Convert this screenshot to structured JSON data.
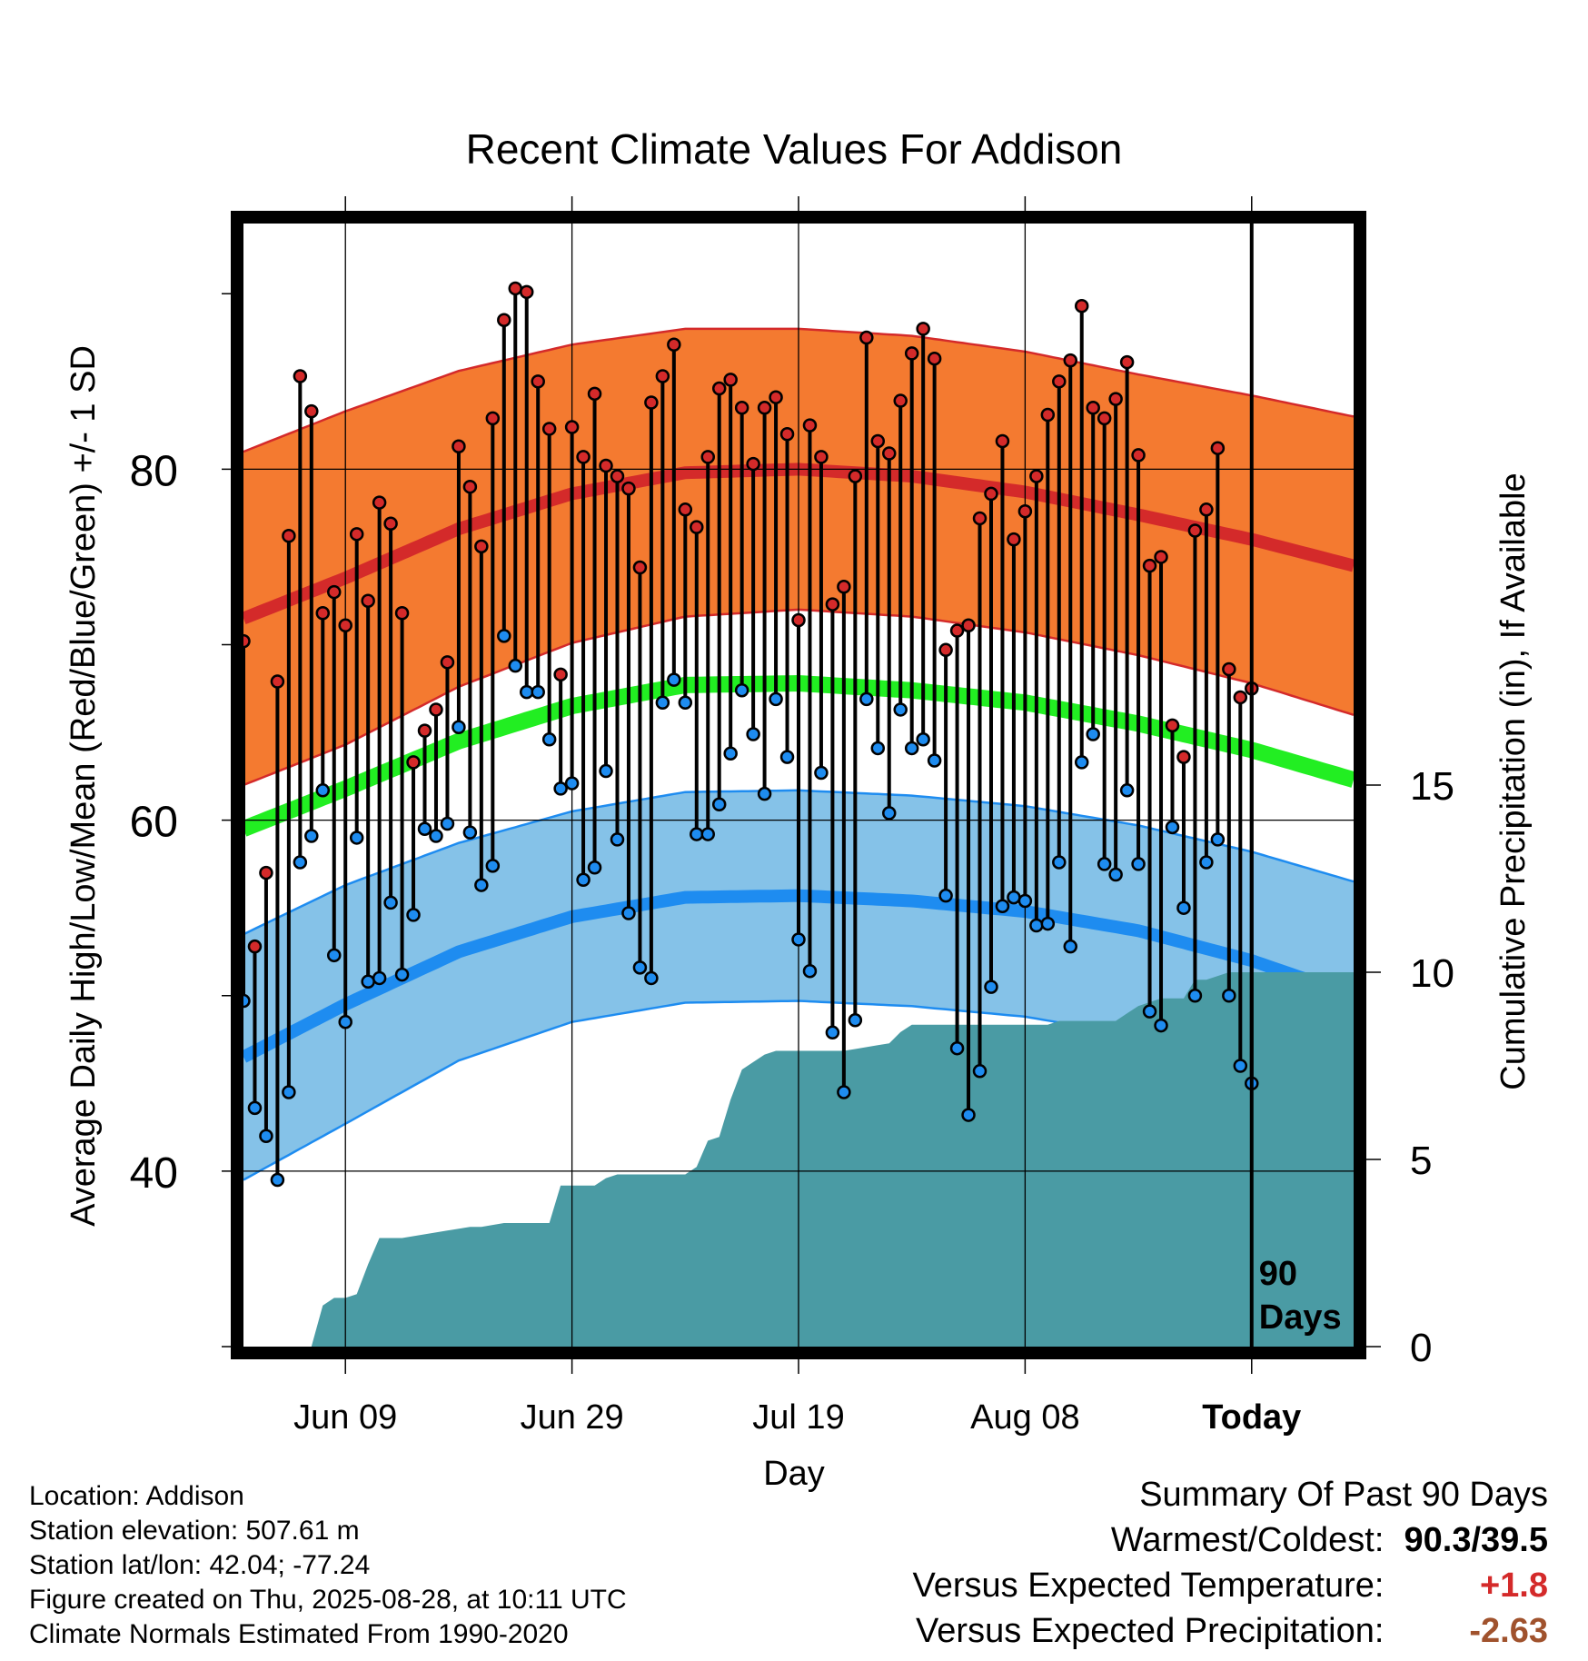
{
  "chart_data": {
    "type": "line",
    "title": "Recent Climate Values For Addison",
    "xlabel": "Day",
    "ylabel": "Average Daily High/Low/Mean (Red/Blue/Green) +/- 1 SD",
    "y2label": "Cumulative Precipitation (in), If Available",
    "ylim": [
      30,
      94
    ],
    "y2lim": [
      0,
      30
    ],
    "x_days_before_today": [
      -89,
      9
    ],
    "x_ticks": [
      {
        "label": "Jun 09",
        "day": -80
      },
      {
        "label": "Jun 29",
        "day": -60
      },
      {
        "label": "Jul 19",
        "day": -40
      },
      {
        "label": "Aug 08",
        "day": -20
      },
      {
        "label": "Today",
        "day": 0
      }
    ],
    "y_ticks": [
      40,
      60,
      80
    ],
    "y2_ticks": [
      0,
      5,
      10,
      15
    ],
    "grid": true,
    "today_marker": "90\nDays",
    "colors": {
      "high_band": "#f47a30",
      "high_mean": "#d42a2a",
      "low_band": "#85c2e8",
      "low_mean": "#1e8cf0",
      "avg_mean": "#22ee22",
      "precip": "#4a9ba4",
      "high_point": "#d42a2a",
      "low_point": "#1e8cf0"
    },
    "normals": {
      "days": [
        -89,
        -80,
        -70,
        -60,
        -50,
        -40,
        -30,
        -20,
        -10,
        0,
        9
      ],
      "high_mean": [
        71.5,
        73.8,
        76.6,
        78.6,
        79.8,
        80.0,
        79.6,
        78.7,
        77.4,
        76.0,
        74.5
      ],
      "high_sd": [
        9.5,
        9.5,
        9.0,
        8.5,
        8.2,
        8.0,
        8.0,
        8.0,
        8.0,
        8.2,
        8.5
      ],
      "low_mean": [
        46.5,
        49.5,
        52.5,
        54.5,
        55.6,
        55.7,
        55.4,
        54.8,
        53.7,
        52.0,
        50.0
      ],
      "low_sd": [
        7.0,
        6.8,
        6.2,
        6.0,
        6.0,
        6.0,
        6.0,
        6.0,
        6.0,
        6.2,
        6.5
      ],
      "avg_mean": [
        59.5,
        61.8,
        64.5,
        66.5,
        67.7,
        67.8,
        67.4,
        66.7,
        65.5,
        64.0,
        62.3
      ]
    },
    "series": [
      {
        "name": "High",
        "values": [
          70.2,
          52.8,
          57.0,
          67.9,
          76.2,
          85.3,
          83.3,
          71.8,
          73.0,
          71.1,
          76.3,
          72.5,
          78.1,
          76.9,
          71.8,
          63.3,
          65.1,
          66.3,
          69.0,
          81.3,
          79.0,
          75.6,
          82.9,
          88.5,
          90.3,
          90.1,
          85.0,
          82.3,
          68.3,
          82.4,
          80.7,
          84.3,
          80.2,
          79.6,
          78.9,
          74.4,
          83.8,
          85.3,
          87.1,
          77.7,
          76.7,
          80.7,
          84.6,
          85.1,
          83.5,
          80.3,
          83.5,
          84.1,
          82.0,
          71.4,
          82.5,
          80.7,
          72.3,
          73.3,
          79.6,
          87.5,
          81.6,
          80.9,
          83.9,
          86.6,
          88.0,
          86.3,
          69.7,
          70.8,
          71.1,
          77.2,
          78.6,
          81.6,
          76.0,
          77.6,
          79.6,
          83.1,
          85.0,
          86.2,
          89.3,
          83.5,
          82.9,
          84.0,
          86.1,
          80.8,
          74.5,
          75.0,
          65.4,
          63.6,
          76.5,
          77.7,
          81.2,
          68.6,
          67.0,
          67.5
        ]
      },
      {
        "name": "Low",
        "values": [
          49.7,
          43.6,
          42.0,
          39.5,
          44.5,
          57.6,
          59.1,
          61.7,
          52.3,
          48.5,
          59.0,
          50.8,
          51.0,
          55.3,
          51.2,
          54.6,
          59.5,
          59.1,
          59.8,
          65.3,
          59.3,
          56.3,
          57.4,
          70.5,
          68.8,
          67.3,
          67.3,
          64.6,
          61.8,
          62.1,
          56.6,
          57.3,
          62.8,
          58.9,
          54.7,
          51.6,
          51.0,
          66.7,
          68.0,
          66.7,
          59.2,
          59.2,
          60.9,
          63.8,
          67.4,
          64.9,
          61.5,
          66.9,
          63.6,
          53.2,
          51.4,
          62.7,
          47.9,
          44.5,
          48.6,
          66.9,
          64.1,
          60.4,
          66.3,
          64.1,
          64.6,
          63.4,
          55.7,
          47.0,
          43.2,
          45.7,
          50.5,
          55.1,
          55.6,
          55.4,
          54.0,
          54.1,
          57.6,
          52.8,
          63.3,
          64.9,
          57.5,
          56.9,
          61.7,
          57.5,
          49.1,
          48.3,
          59.6,
          55.0,
          50.0,
          57.6,
          58.9,
          50.0,
          46.0,
          45.0
        ]
      }
    ],
    "precip_cumulative": {
      "days": [
        -89,
        -83,
        -82,
        -81,
        -80,
        -79,
        -78,
        -77,
        -75,
        -73,
        -71,
        -69,
        -68,
        -67,
        -66,
        -65,
        -64,
        -63,
        -62,
        -61,
        -60,
        -59,
        -58,
        -57,
        -56,
        -55,
        -54,
        -53,
        -52,
        -51,
        -50,
        -49,
        -48,
        -47,
        -46,
        -45,
        -44,
        -43,
        -42,
        -41,
        -40,
        -39,
        -38,
        -37,
        -36,
        -35,
        -34,
        -33,
        -32,
        -31,
        -30,
        -29,
        -28,
        -27,
        -26,
        -25,
        -24,
        -23,
        -22,
        -21,
        -20,
        -19,
        -18,
        -17,
        -16,
        -15,
        -14,
        -13,
        -12,
        -11,
        -10,
        -9,
        -8,
        -7,
        -6,
        -5,
        -4,
        -3,
        -2,
        -1,
        0,
        9
      ],
      "values": [
        0,
        0,
        1.1,
        1.3,
        1.3,
        1.4,
        2.2,
        2.9,
        2.9,
        3.0,
        3.1,
        3.2,
        3.2,
        3.25,
        3.3,
        3.3,
        3.3,
        3.3,
        3.3,
        4.3,
        4.3,
        4.3,
        4.3,
        4.5,
        4.6,
        4.6,
        4.6,
        4.6,
        4.6,
        4.6,
        4.6,
        4.8,
        5.5,
        5.6,
        6.6,
        7.4,
        7.6,
        7.8,
        7.9,
        7.9,
        7.9,
        7.9,
        7.9,
        7.9,
        7.9,
        7.95,
        8.0,
        8.05,
        8.1,
        8.4,
        8.6,
        8.6,
        8.6,
        8.6,
        8.6,
        8.6,
        8.6,
        8.6,
        8.6,
        8.6,
        8.6,
        8.6,
        8.6,
        8.7,
        8.7,
        8.7,
        8.7,
        8.7,
        8.7,
        8.9,
        9.1,
        9.2,
        9.3,
        9.3,
        9.3,
        9.8,
        9.8,
        9.9,
        10.0,
        10.0,
        10.0,
        10.0
      ]
    }
  },
  "footer": {
    "location": "Location: Addison",
    "elevation": "Station elevation: 507.61 m",
    "latlon": "Station lat/lon: 42.04; -77.24",
    "created": "Figure created on Thu, 2025-08-28, at 10:11 UTC",
    "normals": "Climate Normals Estimated From 1990-2020"
  },
  "summary": {
    "heading": "Summary Of Past 90 Days",
    "warm_cold_label": "Warmest/Coldest:",
    "warm_cold_value": "90.3/39.5",
    "temp_label": "Versus Expected Temperature:",
    "temp_value": "+1.8",
    "temp_color": "#d42a2a",
    "precip_label": "Versus Expected Precipitation:",
    "precip_value": "-2.63",
    "precip_color": "#a0522d"
  }
}
